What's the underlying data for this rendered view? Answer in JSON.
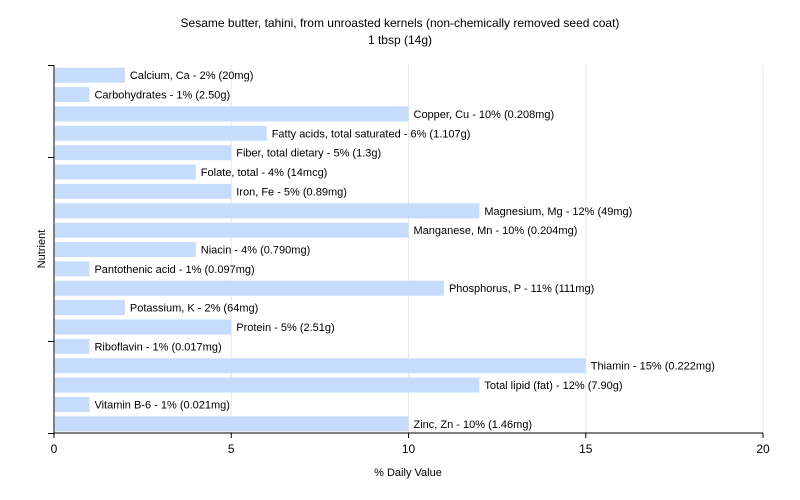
{
  "chart_data": {
    "type": "bar",
    "orientation": "horizontal",
    "title": "Sesame butter, tahini, from unroasted kernels (non-chemically removed seed coat)",
    "subtitle": "1 tbsp (14g)",
    "xlabel": "% Daily Value",
    "ylabel": "Nutrient",
    "xlim": [
      0,
      20
    ],
    "xticks": [
      0,
      5,
      10,
      15,
      20
    ],
    "grid": true,
    "bar_color": "#c6dcfd",
    "categories": [
      "Calcium, Ca",
      "Carbohydrates",
      "Copper, Cu",
      "Fatty acids, total saturated",
      "Fiber, total dietary",
      "Folate, total",
      "Iron, Fe",
      "Magnesium, Mg",
      "Manganese, Mn",
      "Niacin",
      "Pantothenic acid",
      "Phosphorus, P",
      "Potassium, K",
      "Protein",
      "Riboflavin",
      "Thiamin",
      "Total lipid (fat)",
      "Vitamin B-6",
      "Zinc, Zn"
    ],
    "values": [
      2,
      1,
      10,
      6,
      5,
      4,
      5,
      12,
      10,
      4,
      1,
      11,
      2,
      5,
      1,
      15,
      12,
      1,
      10
    ],
    "labels": [
      "Calcium, Ca - 2% (20mg)",
      "Carbohydrates - 1% (2.50g)",
      "Copper, Cu - 10% (0.208mg)",
      "Fatty acids, total saturated - 6% (1.107g)",
      "Fiber, total dietary - 5% (1.3g)",
      "Folate, total - 4% (14mcg)",
      "Iron, Fe - 5% (0.89mg)",
      "Magnesium, Mg - 12% (49mg)",
      "Manganese, Mn - 10% (0.204mg)",
      "Niacin - 4% (0.790mg)",
      "Pantothenic acid - 1% (0.097mg)",
      "Phosphorus, P - 11% (111mg)",
      "Potassium, K - 2% (64mg)",
      "Protein - 5% (2.51g)",
      "Riboflavin - 1% (0.017mg)",
      "Thiamin - 15% (0.222mg)",
      "Total lipid (fat) - 12% (7.90g)",
      "Vitamin B-6 - 1% (0.021mg)",
      "Zinc, Zn - 10% (1.46mg)"
    ]
  }
}
